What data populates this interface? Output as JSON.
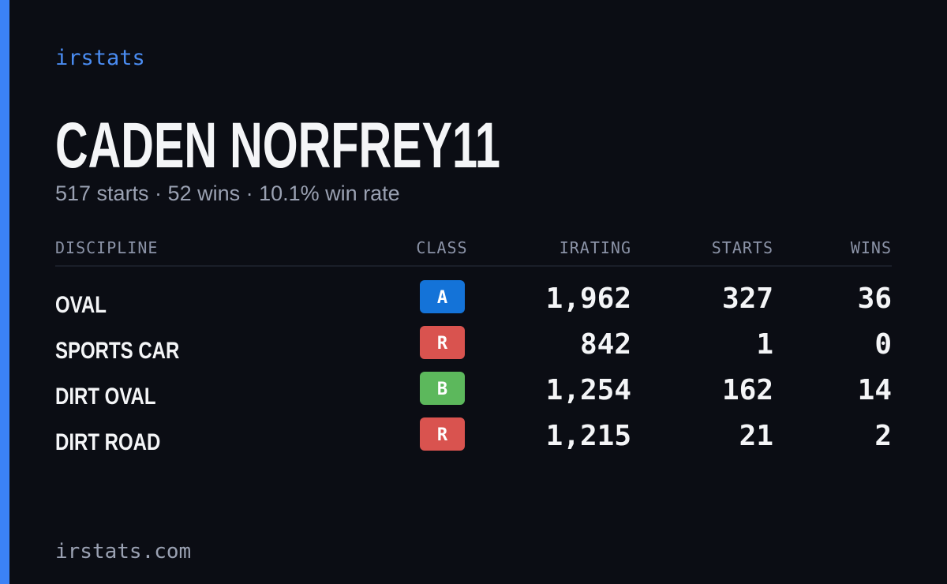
{
  "brand": "irstats",
  "name": "CADEN NORFREY11",
  "summary": "517 starts · 52 wins · 10.1% win rate",
  "table": {
    "headers": [
      "DISCIPLINE",
      "CLASS",
      "IRATING",
      "STARTS",
      "WINS"
    ],
    "rows": [
      {
        "discipline": "OVAL",
        "class": "A",
        "class_color": "#1473d8",
        "irating": "1,962",
        "starts": "327",
        "wins": "36"
      },
      {
        "discipline": "SPORTS CAR",
        "class": "R",
        "class_color": "#d9534f",
        "irating": "842",
        "starts": "1",
        "wins": "0"
      },
      {
        "discipline": "DIRT OVAL",
        "class": "B",
        "class_color": "#5cb85c",
        "irating": "1,254",
        "starts": "162",
        "wins": "14"
      },
      {
        "discipline": "DIRT ROAD",
        "class": "R",
        "class_color": "#d9534f",
        "irating": "1,215",
        "starts": "21",
        "wins": "2"
      }
    ]
  },
  "footer": "irstats.com"
}
